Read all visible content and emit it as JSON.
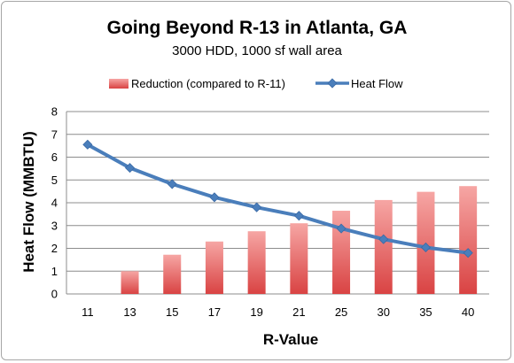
{
  "chart_data": {
    "type": "bar",
    "title": "Going Beyond R-13 in Atlanta, GA",
    "subtitle": "3000 HDD, 1000 sf wall area",
    "xlabel": "R-Value",
    "ylabel": "Heat Flow (MMBTU)",
    "categories": [
      "11",
      "13",
      "15",
      "17",
      "19",
      "21",
      "25",
      "30",
      "35",
      "40"
    ],
    "ylim": [
      0,
      8
    ],
    "yticks": [
      "0",
      "1",
      "2",
      "3",
      "4",
      "5",
      "6",
      "7",
      "8"
    ],
    "grid": true,
    "legend_position": "top",
    "series": [
      {
        "name": "Reduction (compared to R-11)",
        "type": "bar",
        "color": "#e05a5a",
        "values": [
          0,
          1.0,
          1.72,
          2.3,
          2.75,
          3.1,
          3.65,
          4.12,
          4.48,
          4.73
        ]
      },
      {
        "name": "Heat Flow",
        "type": "line",
        "color": "#4a7ebb",
        "values": [
          6.55,
          5.53,
          4.82,
          4.24,
          3.8,
          3.43,
          2.87,
          2.4,
          2.04,
          1.8
        ]
      }
    ]
  }
}
